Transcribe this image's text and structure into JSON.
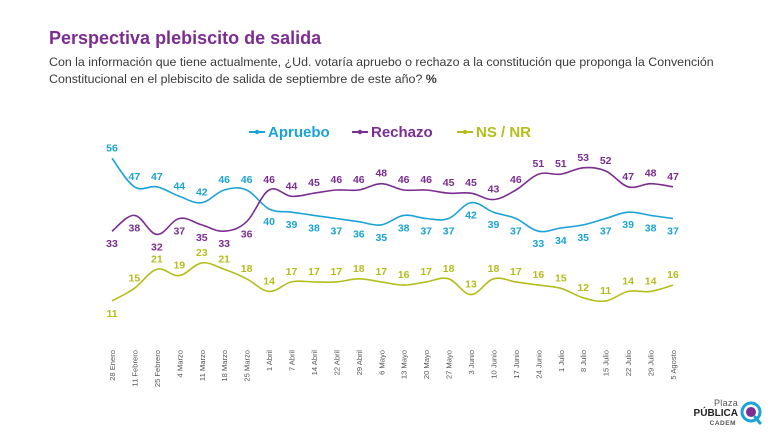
{
  "header": {
    "title": "Perspectiva plebiscito de salida",
    "subtitle": "Con la información que tiene actualmente, ¿Ud. votaría apruebo o rechazo a la constitución que proponga la Convención Constitucional en el plebiscito de salida de septiembre de este año?",
    "unit": "%"
  },
  "brand": {
    "line1": "Plaza",
    "line2": "PÚBLICA",
    "line3": "CADEM"
  },
  "colors": {
    "apruebo": "#1aa3d6",
    "rechazo": "#7b2d91",
    "nsnr": "#b5bd1c",
    "title": "#7b2d91"
  },
  "chart_data": {
    "type": "line",
    "title": "Perspectiva plebiscito de salida",
    "xlabel": "",
    "ylabel": "%",
    "ylim": [
      0,
      60
    ],
    "grid": false,
    "legend_position": "top-center",
    "categories": [
      "28 Enero",
      "11 Febrero",
      "25 Febrero",
      "4 Marzo",
      "11 Marzo",
      "18 Marzo",
      "25 Marzo",
      "1 Abril",
      "7 Abril",
      "14 Abril",
      "22 Abril",
      "29 Abril",
      "6 Mayo",
      "13 Mayo",
      "20 Mayo",
      "27 Mayo",
      "3 Junio",
      "10 Junio",
      "17 Junio",
      "24 Junio",
      "1 Julio",
      "8 Julio",
      "15 Julio",
      "22 Julio",
      "29 Julio",
      "5 Agosto"
    ],
    "series": [
      {
        "name": "Apruebo",
        "color": "#1aa3d6",
        "values": [
          56,
          47,
          47,
          44,
          42,
          46,
          46,
          40,
          39,
          38,
          37,
          36,
          35,
          38,
          37,
          37,
          42,
          39,
          37,
          33,
          34,
          35,
          37,
          39,
          38,
          37
        ]
      },
      {
        "name": "Rechazo",
        "color": "#7b2d91",
        "values": [
          33,
          38,
          32,
          37,
          35,
          33,
          36,
          46,
          44,
          45,
          46,
          46,
          48,
          46,
          46,
          45,
          45,
          43,
          46,
          51,
          51,
          53,
          52,
          47,
          48,
          47
        ]
      },
      {
        "name": "NS / NR",
        "color": "#b5bd1c",
        "values": [
          11,
          15,
          21,
          19,
          23,
          21,
          18,
          14,
          17,
          17,
          17,
          18,
          17,
          16,
          17,
          18,
          13,
          18,
          17,
          16,
          15,
          12,
          11,
          14,
          14,
          16
        ]
      }
    ]
  }
}
